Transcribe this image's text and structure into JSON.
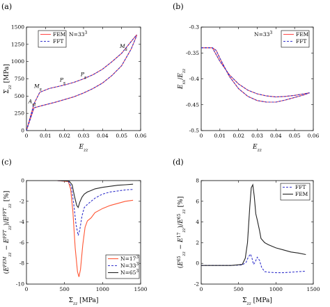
{
  "chart_data": [
    {
      "panel": "(a)",
      "type": "line",
      "xlabel": "E_zz",
      "ylabel": "Σ_zz [MPa]",
      "xlim": [
        0,
        0.06
      ],
      "ylim": [
        0,
        1500
      ],
      "xticks": [
        "0",
        "0.01",
        "0.02",
        "0.03",
        "0.04",
        "0.05",
        "0.06"
      ],
      "yticks": [
        "0",
        "250",
        "500",
        "750",
        "1000",
        "1250",
        "1500"
      ],
      "legend": {
        "placement": "top-left",
        "entries": [
          "FEM",
          "FFT"
        ]
      },
      "annotation": "N=33³",
      "series": [
        {
          "name": "FEM",
          "color": "#ff4d4d",
          "style": "solid",
          "branches": [
            {
              "x": [
                0,
                0.004,
                0.008,
                0.015,
                0.02,
                0.025,
                0.03,
                0.035,
                0.04,
                0.045,
                0.05,
                0.055,
                0.058
              ],
              "y": [
                0,
                330,
                360,
                410,
                450,
                490,
                545,
                610,
                690,
                800,
                940,
                1180,
                1380
              ]
            },
            {
              "x": [
                0,
                0.004,
                0.007,
                0.012,
                0.02,
                0.025,
                0.03,
                0.035,
                0.04,
                0.045,
                0.05,
                0.055,
                0.058
              ],
              "y": [
                0,
                390,
                555,
                610,
                660,
                700,
                750,
                810,
                890,
                1000,
                1120,
                1290,
                1390
              ]
            }
          ]
        },
        {
          "name": "FFT",
          "color": "#3333cc",
          "style": "dashed",
          "branches": [
            {
              "x": [
                0,
                0.004,
                0.008,
                0.015,
                0.02,
                0.025,
                0.03,
                0.035,
                0.04,
                0.045,
                0.05,
                0.055,
                0.058
              ],
              "y": [
                0,
                330,
                360,
                410,
                450,
                490,
                545,
                610,
                690,
                800,
                940,
                1180,
                1380
              ]
            },
            {
              "x": [
                0,
                0.004,
                0.007,
                0.012,
                0.02,
                0.025,
                0.03,
                0.035,
                0.04,
                0.045,
                0.05,
                0.055,
                0.058
              ],
              "y": [
                0,
                390,
                555,
                610,
                660,
                700,
                750,
                810,
                890,
                1000,
                1120,
                1290,
                1390
              ]
            }
          ]
        }
      ],
      "point_labels": [
        {
          "base": "A",
          "sub": "st",
          "x": 0.003,
          "y": 400
        },
        {
          "base": "M",
          "sub": "s",
          "x": 0.006,
          "y": 620
        },
        {
          "base": "P",
          "sub": "s",
          "x": 0.019,
          "y": 710
        },
        {
          "base": "P",
          "sub": "s",
          "x": 0.03,
          "y": 790
        },
        {
          "base": "M",
          "sub": "s",
          "x": 0.051,
          "y": 1200
        }
      ]
    },
    {
      "panel": "(b)",
      "type": "line",
      "xlabel": "E_zz",
      "ylabel": "E_xx/E_zz",
      "xlim": [
        0,
        0.06
      ],
      "ylim": [
        -0.5,
        -0.3
      ],
      "xticks": [
        "0",
        "0.01",
        "0.02",
        "0.03",
        "0.04",
        "0.05",
        "0.06"
      ],
      "yticks": [
        "-0.5",
        "-0.45",
        "-0.4",
        "-0.35",
        "-0.3"
      ],
      "legend": {
        "placement": "top-right",
        "entries": [
          "FEM",
          "FFT"
        ]
      },
      "annotation": "N=33³",
      "series": [
        {
          "name": "FEM",
          "color": "#ff4d4d",
          "style": "solid",
          "branches": [
            {
              "x": [
                0,
                0.004,
                0.006,
                0.01,
                0.015,
                0.02,
                0.025,
                0.03,
                0.035,
                0.04,
                0.045,
                0.05,
                0.055,
                0.058
              ],
              "y": [
                -0.34,
                -0.34,
                -0.34,
                -0.366,
                -0.392,
                -0.41,
                -0.422,
                -0.429,
                -0.433,
                -0.435,
                -0.434,
                -0.432,
                -0.429,
                -0.427
              ]
            },
            {
              "x": [
                0,
                0.004,
                0.006,
                0.008,
                0.01,
                0.015,
                0.02,
                0.025,
                0.03,
                0.035,
                0.04,
                0.045,
                0.05,
                0.055,
                0.058
              ],
              "y": [
                -0.34,
                -0.34,
                -0.34,
                -0.345,
                -0.36,
                -0.395,
                -0.419,
                -0.434,
                -0.442,
                -0.445,
                -0.445,
                -0.441,
                -0.436,
                -0.431,
                -0.427
              ]
            }
          ]
        },
        {
          "name": "FFT",
          "color": "#3333cc",
          "style": "dashed",
          "branches": [
            {
              "x": [
                0,
                0.004,
                0.006,
                0.01,
                0.015,
                0.02,
                0.025,
                0.03,
                0.035,
                0.04,
                0.045,
                0.05,
                0.055,
                0.058
              ],
              "y": [
                -0.34,
                -0.34,
                -0.34,
                -0.366,
                -0.392,
                -0.41,
                -0.422,
                -0.429,
                -0.433,
                -0.435,
                -0.434,
                -0.432,
                -0.429,
                -0.427
              ]
            },
            {
              "x": [
                0,
                0.004,
                0.006,
                0.008,
                0.01,
                0.015,
                0.02,
                0.025,
                0.03,
                0.035,
                0.04,
                0.045,
                0.05,
                0.055,
                0.058
              ],
              "y": [
                -0.34,
                -0.34,
                -0.34,
                -0.345,
                -0.36,
                -0.395,
                -0.419,
                -0.434,
                -0.442,
                -0.445,
                -0.445,
                -0.441,
                -0.436,
                -0.431,
                -0.427
              ]
            }
          ]
        }
      ]
    },
    {
      "panel": "(c)",
      "type": "line",
      "xlabel": "Σ_zz [MPa]",
      "ylabel": "(E_zz^FEM − E_zz^FFT)/E_zz^FFT [%]",
      "xlim": [
        0,
        1500
      ],
      "ylim": [
        -10,
        0
      ],
      "xticks": [
        "0",
        "500",
        "1000",
        "1500"
      ],
      "yticks": [
        "-10",
        "-8",
        "-6",
        "-4",
        "-2",
        "0"
      ],
      "legend": {
        "placement": "bottom-right",
        "entries": [
          "N=17³",
          "N=33³",
          "N=65³"
        ]
      },
      "series": [
        {
          "name": "N=17³",
          "color": "#ff5533",
          "style": "solid",
          "x": [
            0,
            400,
            550,
            580,
            610,
            640,
            670,
            690,
            710,
            740,
            770,
            800,
            850,
            900,
            1000,
            1100,
            1200,
            1300,
            1400
          ],
          "y": [
            0,
            0,
            -0.1,
            -0.8,
            -3,
            -6.5,
            -8.8,
            -9.3,
            -8.6,
            -6.2,
            -4.5,
            -3.9,
            -3.6,
            -3.1,
            -2.7,
            -2.4,
            -2.2,
            -2.0,
            -1.9
          ]
        },
        {
          "name": "N=33³",
          "color": "#3333cc",
          "style": "dashed",
          "x": [
            0,
            400,
            550,
            590,
            620,
            650,
            680,
            700,
            730,
            760,
            800,
            850,
            900,
            1000,
            1100,
            1200,
            1300,
            1400
          ],
          "y": [
            0,
            0,
            -0.05,
            -0.6,
            -2.2,
            -4.2,
            -5.3,
            -4.8,
            -3.4,
            -2.6,
            -2.3,
            -2.0,
            -1.7,
            -1.3,
            -1.1,
            -1.0,
            -0.9,
            -0.85
          ]
        },
        {
          "name": "N=65³",
          "color": "#222222",
          "style": "solid",
          "x": [
            0,
            400,
            560,
            600,
            630,
            660,
            680,
            700,
            730,
            760,
            800,
            850,
            900,
            1000,
            1100,
            1200,
            1300,
            1400
          ],
          "y": [
            0,
            0,
            -0.05,
            -0.4,
            -1.5,
            -2.4,
            -2.6,
            -2.1,
            -1.6,
            -1.3,
            -1.1,
            -0.95,
            -0.8,
            -0.65,
            -0.55,
            -0.45,
            -0.4,
            -0.35
          ]
        }
      ]
    },
    {
      "panel": "(d)",
      "type": "line",
      "xlabel": "Σ_zz [MPa]",
      "ylabel": "(E_zz^65 − E_zz^17)/E_zz^65 [%]",
      "xlim": [
        0,
        1500
      ],
      "ylim": [
        -2,
        8
      ],
      "xticks": [
        "0",
        "500",
        "1000",
        "1500"
      ],
      "yticks": [
        "-2",
        "0",
        "2",
        "4",
        "6",
        "8"
      ],
      "legend": {
        "placement": "top-right",
        "entries": [
          "FFT",
          "FEM"
        ]
      },
      "series": [
        {
          "name": "FFT",
          "color": "#3333cc",
          "style": "dashed",
          "x": [
            0,
            400,
            550,
            600,
            630,
            660,
            680,
            700,
            720,
            750,
            780,
            810,
            850,
            900,
            1000,
            1100,
            1200,
            1300,
            1400
          ],
          "y": [
            -0.2,
            -0.2,
            -0.15,
            0.1,
            0.6,
            0.9,
            0.5,
            -0.1,
            0.1,
            0.6,
            0.3,
            -0.4,
            -0.8,
            -0.85,
            -0.9,
            -0.9,
            -0.85,
            -0.8,
            -0.75
          ]
        },
        {
          "name": "FEM",
          "color": "#222222",
          "style": "solid",
          "x": [
            0,
            400,
            550,
            590,
            620,
            650,
            670,
            690,
            710,
            730,
            750,
            780,
            800,
            850,
            900,
            1000,
            1100,
            1200,
            1300,
            1400
          ],
          "y": [
            -0.2,
            -0.2,
            -0.1,
            0.5,
            2.0,
            5.5,
            7.3,
            7.6,
            6.5,
            4.8,
            4.2,
            3.2,
            2.4,
            2.0,
            1.8,
            1.5,
            1.3,
            1.1,
            1.0,
            0.85
          ]
        }
      ]
    }
  ]
}
